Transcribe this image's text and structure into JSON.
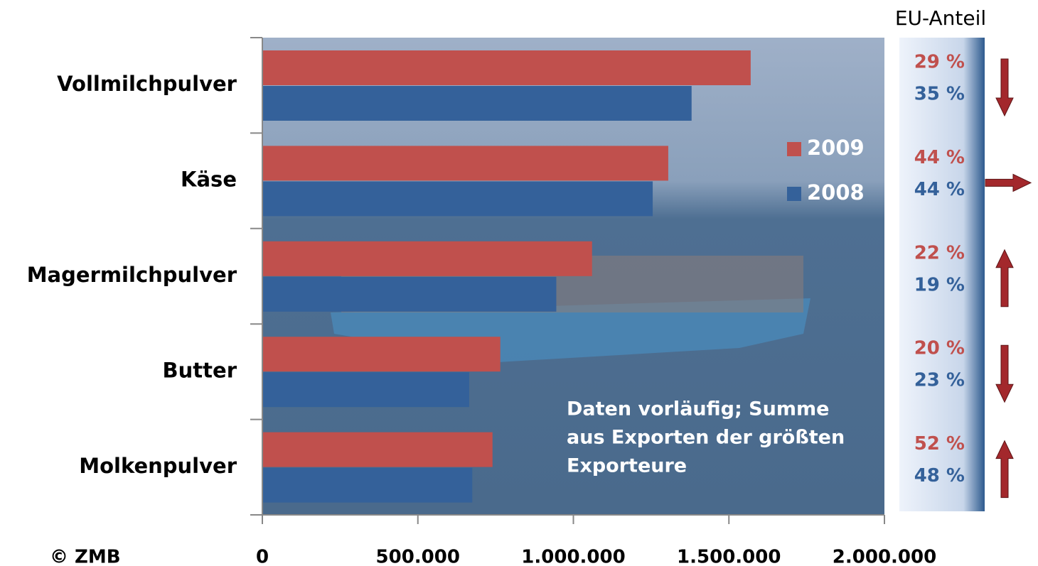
{
  "chart_data": {
    "type": "hbar",
    "categories": [
      "Vollmilchpulver",
      "Käse",
      "Magermilchpulver",
      "Butter",
      "Molkenpulver"
    ],
    "series": [
      {
        "name": "2009",
        "color": "#c0504d",
        "values": [
          1570000,
          1305000,
          1060000,
          765000,
          740000
        ]
      },
      {
        "name": "2008",
        "color": "#34619a",
        "values": [
          1380000,
          1255000,
          945000,
          665000,
          675000
        ]
      }
    ],
    "xlim": [
      0,
      2000000
    ],
    "xticks": [
      0,
      {
        "value": 500000,
        "label": "500.000"
      },
      {
        "value": 1000000,
        "label": "1.000.000"
      },
      {
        "value": 1500000,
        "label": "1.500.000"
      },
      {
        "value": 2000000,
        "label": "2.000.000"
      }
    ],
    "annotation": [
      "Daten vorläufig; Summe",
      "aus Exporten der größten",
      "Exporteure"
    ],
    "credit": "© ZMB",
    "eu_share": {
      "title": "EU-Anteil",
      "series": [
        {
          "values": [
            29,
            44,
            22,
            20,
            52
          ],
          "labels": [
            "29 %",
            "44 %",
            "22 %",
            "20 %",
            "52 %"
          ]
        },
        {
          "values": [
            35,
            44,
            19,
            23,
            48
          ],
          "labels": [
            "35 %",
            "44 %",
            "19 %",
            "23 %",
            "48 %"
          ]
        }
      ]
    }
  }
}
